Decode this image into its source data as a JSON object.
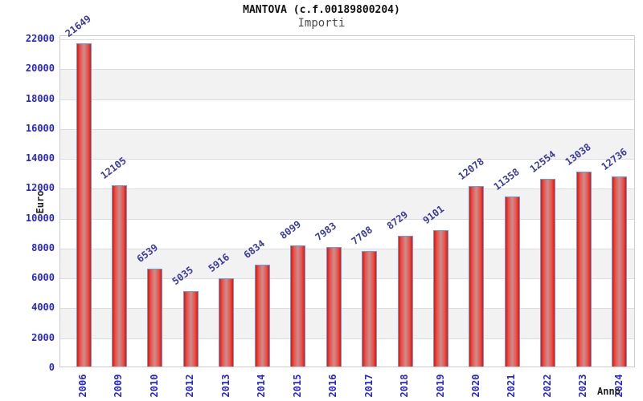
{
  "header": {
    "title": "MANTOVA (c.f.00189800204)",
    "subtitle": "Importi"
  },
  "chart_data": {
    "type": "bar",
    "title": "MANTOVA (c.f.00189800204)",
    "subtitle": "Importi",
    "xlabel": "Anno",
    "ylabel": "Euro",
    "categories": [
      "2006",
      "2009",
      "2010",
      "2012",
      "2013",
      "2014",
      "2015",
      "2016",
      "2017",
      "2018",
      "2019",
      "2020",
      "2021",
      "2022",
      "2023",
      "2024"
    ],
    "values": [
      21649,
      12105,
      6539,
      5035,
      5916,
      6834,
      8099,
      7983,
      7708,
      8729,
      9101,
      12078,
      11358,
      12554,
      13038,
      12736
    ],
    "ylim": [
      0,
      22000
    ],
    "ytick_step": 2000,
    "yticks": [
      0,
      2000,
      4000,
      6000,
      8000,
      10000,
      12000,
      14000,
      16000,
      18000,
      20000,
      22000
    ],
    "grid": "horizontal",
    "legend": "none",
    "colors": {
      "bar_edge_fill": "#e41408",
      "bar_center_fill": "#c98e8e",
      "bar_border": "#64a0e0",
      "tick_label": "#2525dd",
      "value_label": "#3b3b9e",
      "band": "#f2f2f2",
      "gridline": "#dcdcdc",
      "title": "#111111",
      "subtitle": "#4d4d4d",
      "axis_title": "#222222"
    }
  }
}
